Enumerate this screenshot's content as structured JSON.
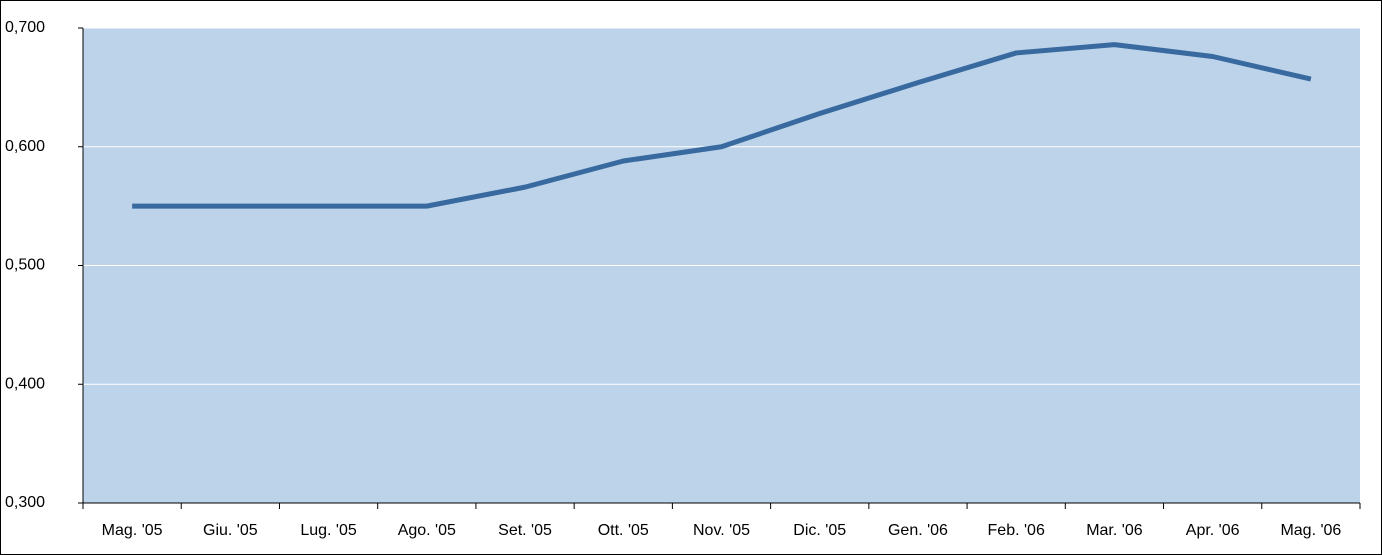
{
  "chart_data": {
    "type": "line",
    "categories": [
      "Mag. '05",
      "Giu. '05",
      "Lug. '05",
      "Ago. '05",
      "Set. '05",
      "Ott. '05",
      "Nov. '05",
      "Dic. '05",
      "Gen. '06",
      "Feb. '06",
      "Mar. '06",
      "Apr. '06",
      "Mag. '06"
    ],
    "values": [
      0.55,
      0.55,
      0.55,
      0.55,
      0.566,
      0.588,
      0.6,
      0.628,
      0.654,
      0.679,
      0.686,
      0.676,
      0.657
    ],
    "color": "#386a9f",
    "ylim": [
      0.3,
      0.7
    ],
    "yticks": [
      {
        "value": 0.3,
        "label": "0,300"
      },
      {
        "value": 0.4,
        "label": "0,400"
      },
      {
        "value": 0.5,
        "label": "0,500"
      },
      {
        "value": 0.6,
        "label": "0,600"
      },
      {
        "value": 0.7,
        "label": "0,700"
      }
    ],
    "grid": true
  }
}
